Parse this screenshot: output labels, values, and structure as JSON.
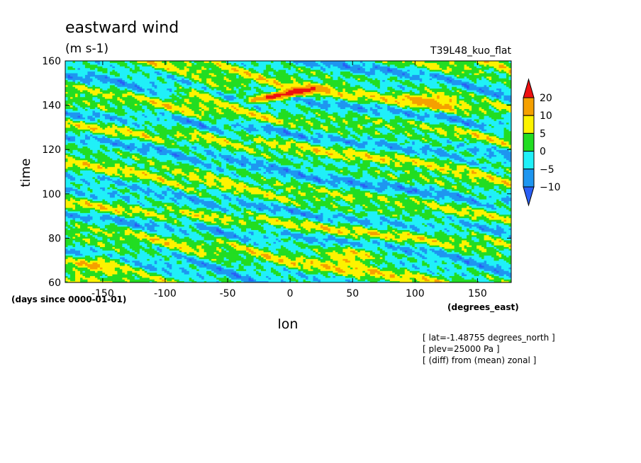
{
  "chart_data": {
    "type": "heatmap",
    "title": "eastward wind",
    "units": "(m s-1)",
    "experiment": "T39L48_kuo_flat",
    "xlabel": "lon",
    "ylabel": "time",
    "x_units": "(degrees_east)",
    "y_units": "(days since 0000-01-01)",
    "xlim": [
      -180,
      177
    ],
    "ylim": [
      60,
      160
    ],
    "x_ticks": [
      -150,
      -100,
      -50,
      0,
      50,
      100,
      150
    ],
    "y_ticks": [
      60,
      80,
      100,
      120,
      140,
      160
    ],
    "grid": false,
    "colorbar": {
      "placement": "right",
      "levels": [
        -10,
        -5,
        0,
        5,
        10,
        20
      ],
      "labels": [
        "20",
        "10",
        "5",
        "0",
        "−5",
        "−10"
      ],
      "colors": {
        "below_-10": "#2a5ff5",
        "-10_-5": "#1e96f0",
        "-5_0": "#20f0f8",
        "0_5": "#22dd22",
        "5_10": "#fdf300",
        "10_20": "#f5a000",
        "above_20": "#ee1010"
      }
    },
    "features": [
      {
        "name": "westward-propagating bands",
        "direction": "from upper-left to lower-right",
        "typical_range": [
          -10,
          10
        ]
      },
      {
        "name": "maximum",
        "lon": -5,
        "time": 145,
        "value": 22
      },
      {
        "name": "positive region",
        "lon": 50,
        "time": 72,
        "value": 12
      },
      {
        "name": "positive region",
        "lon": -150,
        "time": 70,
        "value": 11
      },
      {
        "name": "positive region",
        "lon": -70,
        "time": 145,
        "value": 11
      },
      {
        "name": "positive region",
        "lon": 115,
        "time": 143,
        "value": 12
      }
    ],
    "annotations": [
      "[ lat=-1.48755 degrees_north ]",
      "[ plev=25000 Pa ]",
      "[ (diff) from (mean) zonal ]"
    ]
  }
}
